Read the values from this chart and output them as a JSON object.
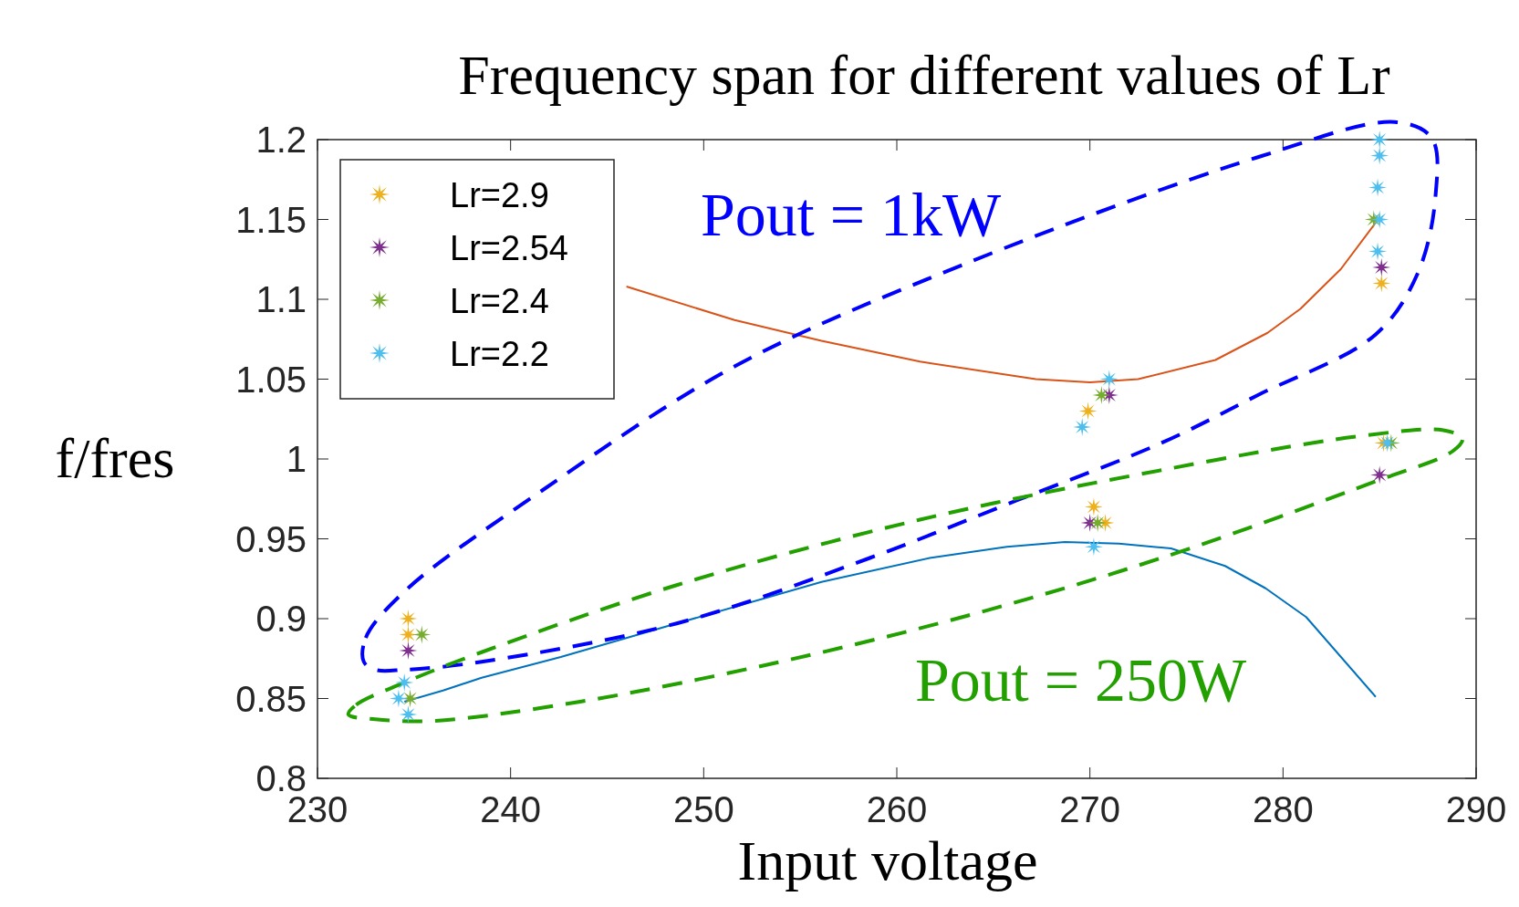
{
  "chart_data": {
    "type": "scatter",
    "title": "Frequency span for different values of Lr",
    "xlabel": "Input voltage",
    "ylabel": "f/fres",
    "xlim": [
      230,
      290
    ],
    "xticks": [
      230,
      240,
      250,
      260,
      270,
      280,
      290
    ],
    "ylim": [
      0.8,
      1.2
    ],
    "yticks": [
      0.8,
      0.85,
      0.9,
      0.95,
      1,
      1.05,
      1.1,
      1.15,
      1.2
    ],
    "grid": false,
    "legend": "top left",
    "marker": "star",
    "annotations": [
      "Pout = 1kW",
      "Pout = 250W"
    ],
    "series": [
      {
        "name": "Lr=2.9",
        "color": "#edb120",
        "x": [
          234.7,
          234.7,
          269.9,
          270.2,
          270.8,
          285.1,
          285.2
        ],
        "values": [
          0.9,
          0.89,
          1.03,
          0.97,
          0.96,
          1.11,
          1.01
        ]
      },
      {
        "name": "Lr=2.54",
        "color": "#7e2f8e",
        "x": [
          234.7,
          271.0,
          270.0,
          285.1,
          285.0
        ],
        "values": [
          0.88,
          1.04,
          0.96,
          1.12,
          0.99
        ]
      },
      {
        "name": "Lr=2.4",
        "color": "#77ac30",
        "x": [
          235.4,
          234.8,
          270.6,
          270.4,
          284.7,
          285.6
        ],
        "values": [
          0.89,
          0.85,
          1.04,
          0.96,
          1.15,
          1.01
        ]
      },
      {
        "name": "Lr=2.2",
        "color": "#4dbeee",
        "x": [
          234.5,
          234.2,
          234.7,
          271.0,
          269.6,
          270.2,
          285.0,
          285.0,
          284.9,
          285.0,
          284.9,
          285.4
        ],
        "values": [
          0.86,
          0.85,
          0.84,
          1.05,
          1.02,
          0.945,
          1.2,
          1.19,
          1.17,
          1.15,
          1.13,
          1.01
        ]
      },
      {
        "type": "line",
        "color": "#d95319",
        "marker": "none",
        "x": [
          246.0,
          251.6,
          256.1,
          261.2,
          267.2,
          270.0,
          272.5,
          276.5,
          279.2,
          280.9,
          283.0,
          284.8
        ],
        "values": [
          1.108,
          1.087,
          1.074,
          1.061,
          1.05,
          1.048,
          1.05,
          1.062,
          1.079,
          1.094,
          1.119,
          1.148
        ]
      },
      {
        "type": "line",
        "color": "#0072bd",
        "marker": "none",
        "x": [
          234.5,
          236.5,
          238.5,
          242.6,
          248.6,
          256.1,
          261.7,
          265.7,
          268.7,
          271.5,
          274.2,
          277.0,
          279.1,
          281.2,
          284.8
        ],
        "values": [
          0.848,
          0.855,
          0.863,
          0.876,
          0.897,
          0.923,
          0.938,
          0.945,
          0.948,
          0.947,
          0.944,
          0.933,
          0.919,
          0.901,
          0.851
        ]
      }
    ]
  }
}
